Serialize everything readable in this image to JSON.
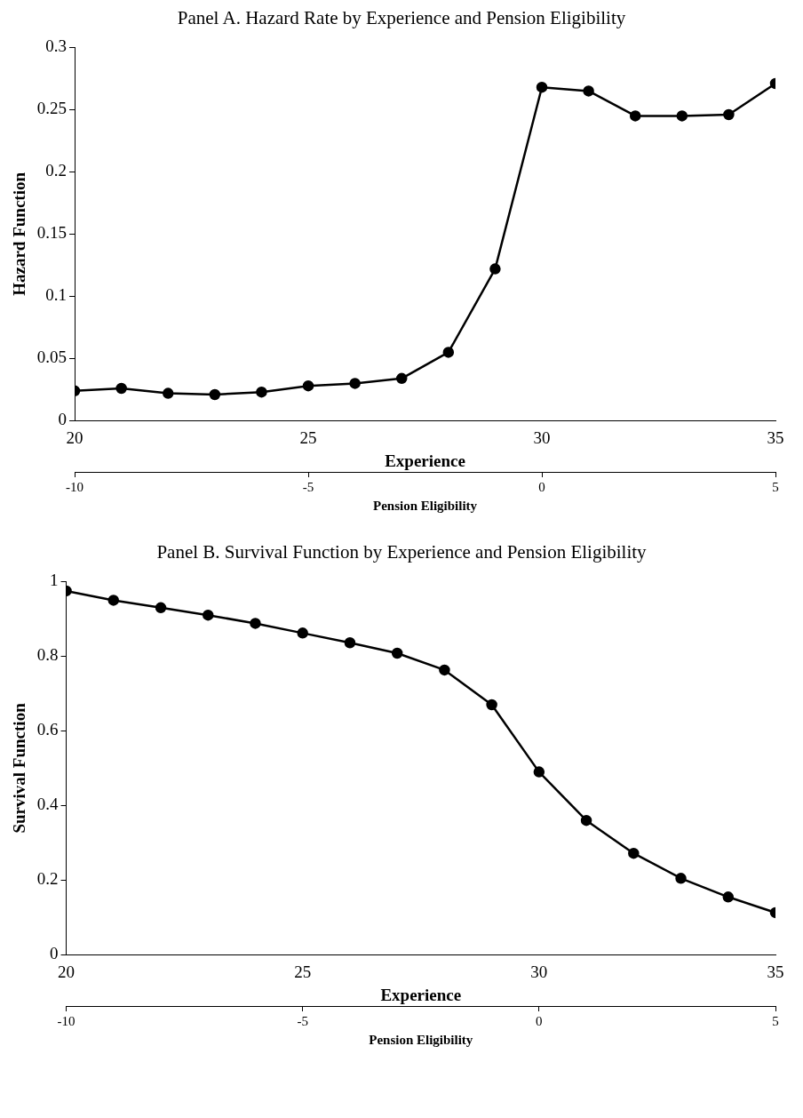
{
  "chart_data": [
    {
      "type": "line",
      "title": "Panel A.  Hazard Rate by Experience and Pension Eligibility",
      "xlabel": "Experience",
      "ylabel": "Hazard Function",
      "x2label": "Pension Eligibility",
      "x": [
        20,
        21,
        22,
        23,
        24,
        25,
        26,
        27,
        28,
        29,
        30,
        31,
        32,
        33,
        34,
        35
      ],
      "series": [
        {
          "color": "#000000",
          "values": [
            0.024,
            0.026,
            0.022,
            0.021,
            0.023,
            0.028,
            0.03,
            0.034,
            0.055,
            0.122,
            0.268,
            0.265,
            0.245,
            0.245,
            0.246,
            0.271
          ]
        }
      ],
      "xlim": [
        20,
        35
      ],
      "xticks": [
        20,
        25,
        30,
        35
      ],
      "x2lim": [
        -10,
        5
      ],
      "x2ticks": [
        -10,
        -5,
        0,
        5
      ],
      "ylim": [
        0,
        0.3
      ],
      "yticks": [
        0,
        0.05,
        {
          "value": 0.1,
          "label": "0.1"
        },
        0.15,
        {
          "value": 0.2,
          "label": "0.2"
        },
        0.25,
        {
          "value": 0.3,
          "label": "0.3"
        }
      ],
      "grid": false,
      "legend": false,
      "marker": "circle",
      "line_style": "solid"
    },
    {
      "type": "line",
      "title": "Panel B.  Survival Function by Experience and Pension Eligibility",
      "xlabel": "Experience",
      "ylabel": "Survival Function",
      "x2label": "Pension Eligibility",
      "x": [
        20,
        21,
        22,
        23,
        24,
        25,
        26,
        27,
        28,
        29,
        30,
        31,
        32,
        33,
        34,
        35
      ],
      "series": [
        {
          "color": "#000000",
          "values": [
            0.975,
            0.95,
            0.93,
            0.91,
            0.888,
            0.862,
            0.836,
            0.808,
            0.763,
            0.67,
            0.49,
            0.36,
            0.272,
            0.205,
            0.155,
            0.113
          ]
        }
      ],
      "xlim": [
        20,
        35
      ],
      "xticks": [
        20,
        25,
        30,
        35
      ],
      "x2lim": [
        -10,
        5
      ],
      "x2ticks": [
        -10,
        -5,
        0,
        5
      ],
      "ylim": [
        0,
        1
      ],
      "yticks": [
        0,
        0.2,
        0.4,
        0.6,
        0.8,
        {
          "value": 1,
          "label": "1"
        }
      ],
      "grid": false,
      "legend": false,
      "marker": "circle",
      "line_style": "solid"
    }
  ]
}
